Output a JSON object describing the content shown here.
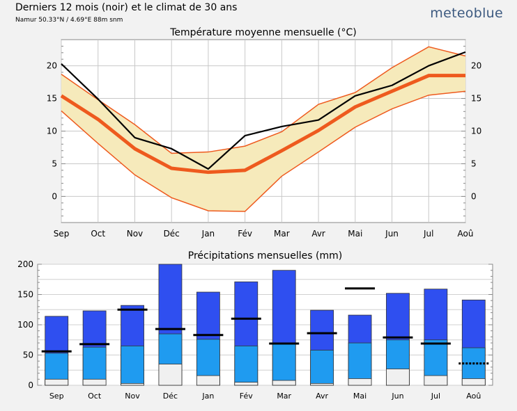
{
  "header": {
    "title": "Derniers 12 mois (noir) et le climat de 30 ans",
    "subtitle": "Namur 50.33°N / 4.69°E   88m snm",
    "brand": "meteoblue"
  },
  "colors": {
    "band_fill": "#f6eabb",
    "band_edge": "#ee5a1e",
    "mean_line": "#ee5a1e",
    "recent_line": "#000000",
    "precip_dark": "#2f4ff0",
    "precip_mid": "#1f9bf0",
    "precip_light": "#f0f0f0"
  },
  "chart_data": [
    {
      "type": "line",
      "title": "Température moyenne mensuelle (°C)",
      "categories": [
        "Sep",
        "Oct",
        "Nov",
        "Déc",
        "Jan",
        "Fév",
        "Mar",
        "Avr",
        "Mai",
        "Jun",
        "Jul",
        "Aoû"
      ],
      "ylim": [
        -4,
        24
      ],
      "yticks": [
        0,
        5,
        10,
        15,
        20
      ],
      "grid": true,
      "series": [
        {
          "values": [
            18.7,
            14.8,
            11.0,
            6.6,
            6.8,
            7.7,
            9.9,
            14.1,
            15.9,
            19.7,
            22.9,
            21.5
          ]
        },
        {
          "values": [
            15.4,
            11.8,
            7.3,
            4.3,
            3.7,
            4.0,
            7.0,
            10.1,
            13.7,
            16.1,
            18.5,
            18.5
          ]
        },
        {
          "values": [
            13.1,
            8.1,
            3.3,
            -0.2,
            -2.2,
            -2.3,
            3.1,
            6.8,
            10.6,
            13.4,
            15.5,
            16.1
          ]
        },
        {
          "values": [
            20.3,
            14.9,
            9.0,
            7.3,
            4.2,
            9.3,
            10.7,
            11.7,
            15.4,
            17.0,
            20.0,
            22.1
          ]
        }
      ]
    },
    {
      "type": "bar",
      "title": "Précipitations mensuelles (mm)",
      "categories": [
        "Sep",
        "Oct",
        "Nov",
        "Déc",
        "Jan",
        "Fév",
        "Mar",
        "Avr",
        "Mai",
        "Jun",
        "Jul",
        "Aoû"
      ],
      "ylim": [
        0,
        200
      ],
      "yticks": [
        0,
        50,
        100,
        150,
        200
      ],
      "grid": true,
      "series": [
        {
          "values": [
            114,
            123,
            132,
            200,
            154,
            171,
            190,
            124,
            116,
            152,
            159,
            141
          ]
        },
        {
          "values": [
            53,
            63,
            65,
            85,
            76,
            65,
            68,
            58,
            70,
            75,
            75,
            62
          ]
        },
        {
          "values": [
            10,
            10,
            3,
            35,
            16,
            5,
            8,
            3,
            11,
            27,
            16,
            11
          ]
        },
        {
          "values": [
            56,
            68,
            125,
            93,
            83,
            110,
            69,
            86,
            160,
            79,
            69,
            36
          ]
        }
      ]
    }
  ]
}
